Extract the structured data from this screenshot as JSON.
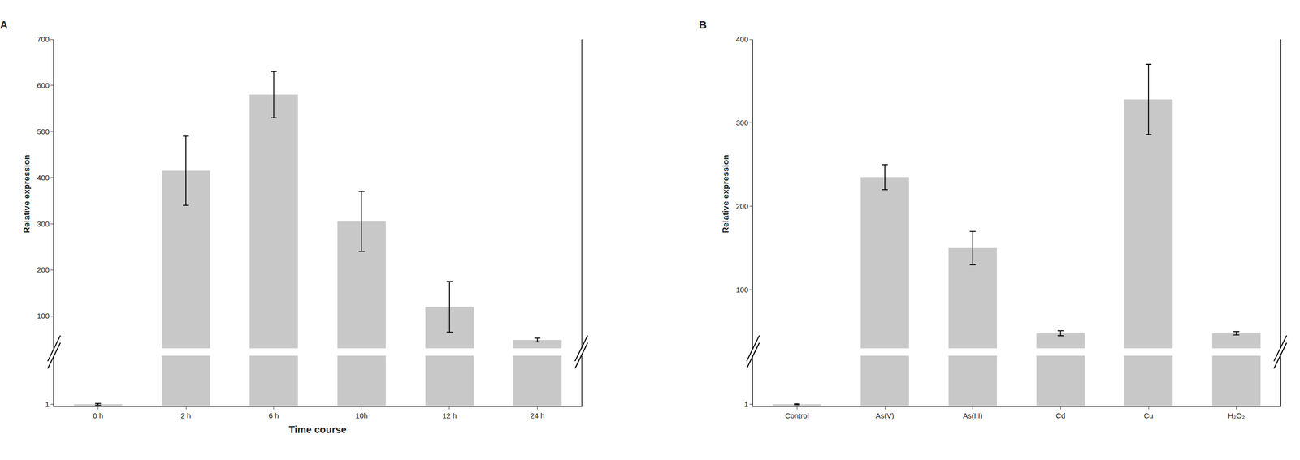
{
  "chart_data": [
    {
      "type": "bar",
      "title": "A",
      "categories": [
        "0 h",
        "2 h",
        "6 h",
        "10h",
        "12 h",
        "24 h"
      ],
      "values": [
        1,
        415,
        580,
        305,
        120,
        48
      ],
      "errors": [
        0.5,
        75,
        50,
        65,
        55,
        4
      ],
      "xlabel": "Time course",
      "ylabel": "Relative expression",
      "color": "#c8c8c8",
      "ylim": [
        [
          0,
          30
        ],
        [
          30,
          700
        ]
      ],
      "yticks": [
        [
          1
        ],
        [
          100,
          200,
          300,
          400,
          500,
          600,
          700
        ]
      ],
      "grid": false
    },
    {
      "type": "bar",
      "title": "B",
      "categories": [
        "Control",
        "As(V)",
        "As(III)",
        "Cd",
        "Cu",
        "H₂O₂"
      ],
      "values": [
        1,
        235,
        150,
        48,
        328,
        48
      ],
      "errors": [
        0.3,
        15,
        20,
        3,
        42,
        2
      ],
      "ylabel": "Relative expression",
      "color": "#c8c8c8",
      "ylim": [
        [
          0,
          30
        ],
        [
          30,
          400
        ]
      ],
      "yticks": [
        [
          1
        ],
        [
          100,
          200,
          300,
          400
        ]
      ],
      "grid": false
    }
  ]
}
